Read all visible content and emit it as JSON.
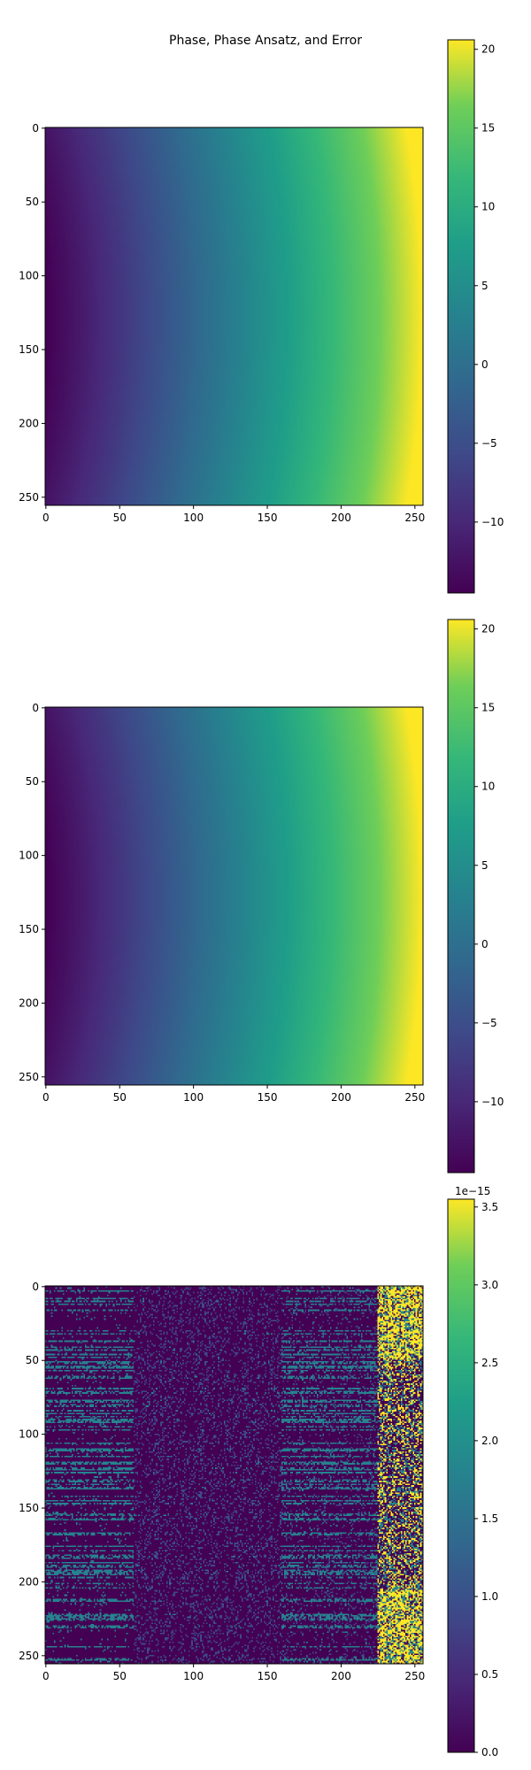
{
  "figure": {
    "title": "Phase, Phase Ansatz, and Error"
  },
  "chart_data": [
    {
      "type": "heatmap",
      "panel": "phase",
      "title": "",
      "xlabel": "",
      "ylabel": "",
      "x_ticks": [
        0,
        50,
        100,
        150,
        200,
        250
      ],
      "y_ticks": [
        0,
        50,
        100,
        150,
        200,
        250
      ],
      "xlim": [
        0,
        255
      ],
      "ylim": [
        255,
        0
      ],
      "grid_size": [
        256,
        256
      ],
      "colormap": "viridis",
      "color_range": [
        -14.5,
        20.6
      ],
      "colorbar_ticks": [
        "−10",
        "−5",
        "0",
        "5",
        "10",
        "15",
        "20"
      ],
      "colorbar_tick_values": [
        -10,
        -5,
        0,
        5,
        10,
        15,
        20
      ],
      "colorbar_offset_label": "",
      "field_description": "smooth gradient, minimum near left edge at row ~128, maximum at right edge"
    },
    {
      "type": "heatmap",
      "panel": "phase_ansatz",
      "title": "",
      "xlabel": "",
      "ylabel": "",
      "x_ticks": [
        0,
        50,
        100,
        150,
        200,
        250
      ],
      "y_ticks": [
        0,
        50,
        100,
        150,
        200,
        250
      ],
      "xlim": [
        0,
        255
      ],
      "ylim": [
        255,
        0
      ],
      "grid_size": [
        256,
        256
      ],
      "colormap": "viridis",
      "color_range": [
        -14.5,
        20.6
      ],
      "colorbar_ticks": [
        "−10",
        "−5",
        "0",
        "5",
        "10",
        "15",
        "20"
      ],
      "colorbar_tick_values": [
        -10,
        -5,
        0,
        5,
        10,
        15,
        20
      ],
      "colorbar_offset_label": ""
    },
    {
      "type": "heatmap",
      "panel": "error",
      "title": "",
      "xlabel": "",
      "ylabel": "",
      "x_ticks": [
        0,
        50,
        100,
        150,
        200,
        250
      ],
      "y_ticks": [
        0,
        50,
        100,
        150,
        200,
        250
      ],
      "xlim": [
        0,
        255
      ],
      "ylim": [
        255,
        0
      ],
      "grid_size": [
        256,
        256
      ],
      "colormap": "viridis",
      "color_range": [
        0.0,
        3.55e-15
      ],
      "colorbar_ticks": [
        "0.0",
        "0.5",
        "1.0",
        "1.5",
        "2.0",
        "2.5",
        "3.0",
        "3.5"
      ],
      "colorbar_tick_values": [
        0.0,
        0.5,
        1.0,
        1.5,
        2.0,
        2.5,
        3.0,
        3.5
      ],
      "colorbar_offset_label": "1e−15",
      "value_levels": [
        0.0,
        0.89,
        1.78,
        3.55
      ]
    }
  ]
}
